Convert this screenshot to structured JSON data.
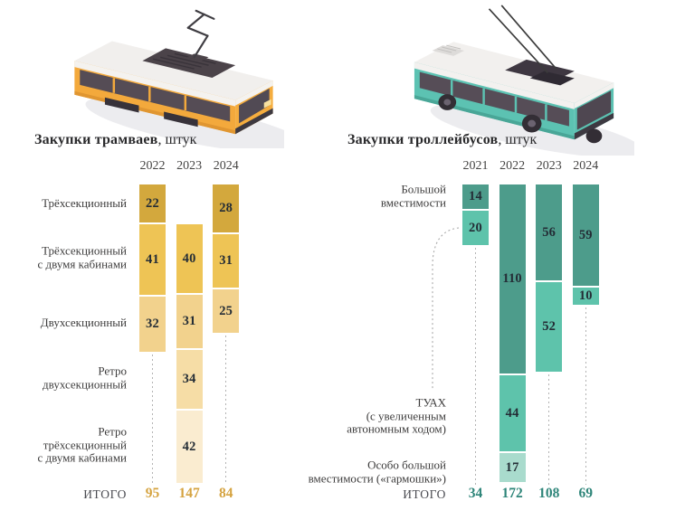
{
  "page": {
    "background": "#ffffff"
  },
  "illustrations": {
    "left": "isometric-tram",
    "right": "isometric-trolleybus"
  },
  "chart_data": [
    {
      "type": "bar",
      "stacked": true,
      "title": "Закупки трамваев",
      "unit_suffix": ", штук",
      "years": [
        "2022",
        "2023",
        "2024"
      ],
      "categories": [
        {
          "label": "Трёхсекционный",
          "label_lines": "Трёхсекционный",
          "color": "#d3a83d",
          "values": [
            22,
            null,
            28
          ]
        },
        {
          "label": "Трёхсекционный с двумя кабинами",
          "label_lines": "Трёхсекционный\nс двумя кабинами",
          "color": "#eec455",
          "values": [
            41,
            40,
            31
          ]
        },
        {
          "label": "Двухсекционный",
          "label_lines": "Двухсекционный",
          "color": "#f2d28d",
          "values": [
            32,
            31,
            25
          ]
        },
        {
          "label": "Ретро двухсекционный",
          "label_lines": "Ретро\nдвухсекционный",
          "color": "#f6dda6",
          "values": [
            null,
            34,
            null
          ]
        },
        {
          "label": "Ретро трёхсекционный с двумя кабинами",
          "label_lines": "Ретро\nтрёхсекционный\nс двумя кабинами",
          "color": "#faecd0",
          "values": [
            null,
            42,
            null
          ]
        }
      ],
      "totals_label": "ИТОГО",
      "totals": [
        95,
        147,
        84
      ],
      "totals_color": "#d5a340"
    },
    {
      "type": "bar",
      "stacked": true,
      "title": "Закупки троллейбусов",
      "unit_suffix": ", штук",
      "years": [
        "2021",
        "2022",
        "2023",
        "2024"
      ],
      "categories": [
        {
          "label": "Большой вместимости",
          "label_lines": "Большой\nвместимости",
          "color": "#4d9c8b",
          "values": [
            14,
            110,
            56,
            59
          ]
        },
        {
          "label": "ТУАХ (с увеличенным автономным ходом)",
          "label_lines": "ТУАХ\n(с увеличенным\nавтономным ходом)",
          "color": "#5ec3ab",
          "values": [
            20,
            44,
            52,
            10
          ]
        },
        {
          "label": "Особо большой вместимости («гармошки»)",
          "label_lines": "Особо большой\nвместимости («гармошки»)",
          "color": "#a9dbcd",
          "values": [
            null,
            17,
            null,
            null
          ]
        }
      ],
      "totals_label": "ИТОГО",
      "totals": [
        34,
        172,
        108,
        69
      ],
      "totals_color": "#2e8579"
    }
  ]
}
